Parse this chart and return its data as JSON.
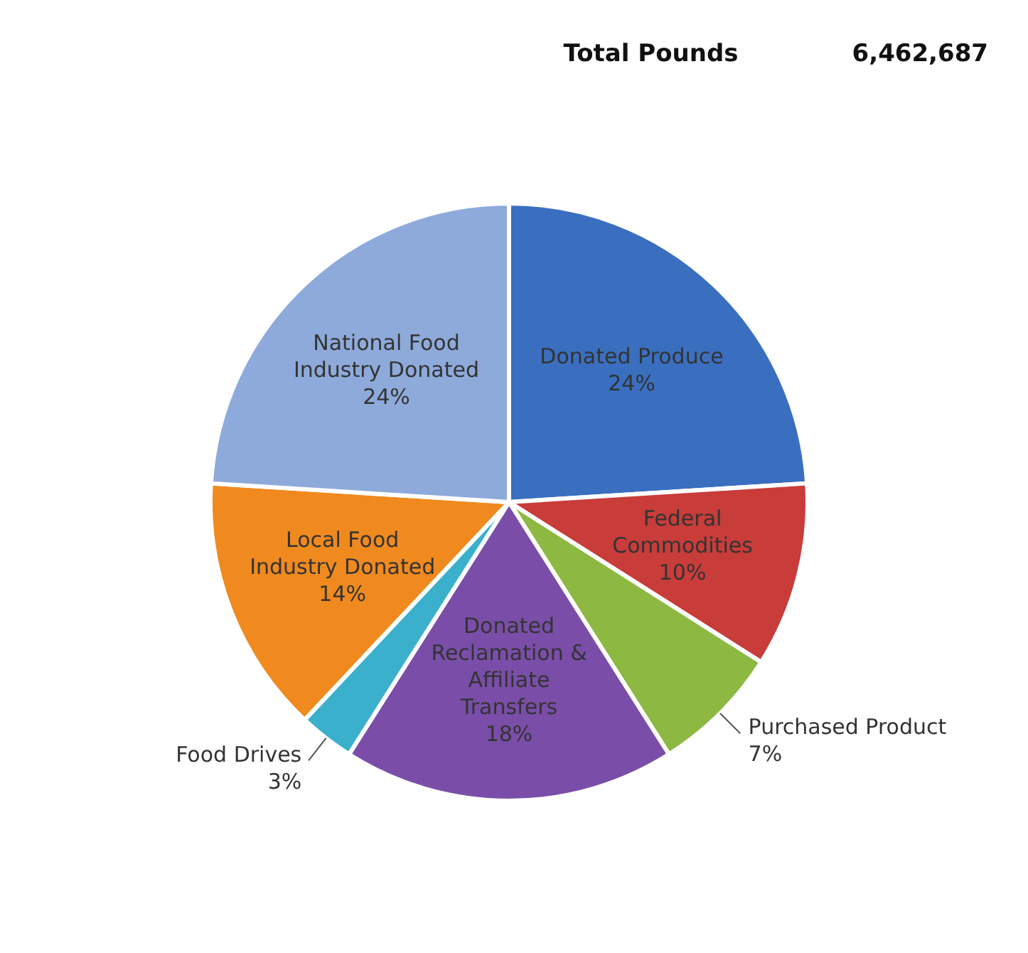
{
  "chart_data": {
    "type": "pie",
    "annotations": [
      "Total Pounds",
      "6,462,687"
    ],
    "categories": [
      "Donated Produce",
      "Federal Commodities",
      "Purchased Product",
      "Donated Reclamation & Affiliate Transfers",
      "Food Drives",
      "Local Food Industry Donated",
      "National Food Industry Donated"
    ],
    "values": [
      24,
      10,
      7,
      18,
      3,
      14,
      24
    ],
    "value_labels": [
      "24%",
      "10%",
      "7%",
      "18%",
      "3%",
      "14%",
      "24%"
    ],
    "colors": [
      "#3a6fc0",
      "#c83c3a",
      "#8db842",
      "#7a4ea8",
      "#3ab0cc",
      "#f08a1e",
      "#8eaadb"
    ],
    "legend": false
  }
}
